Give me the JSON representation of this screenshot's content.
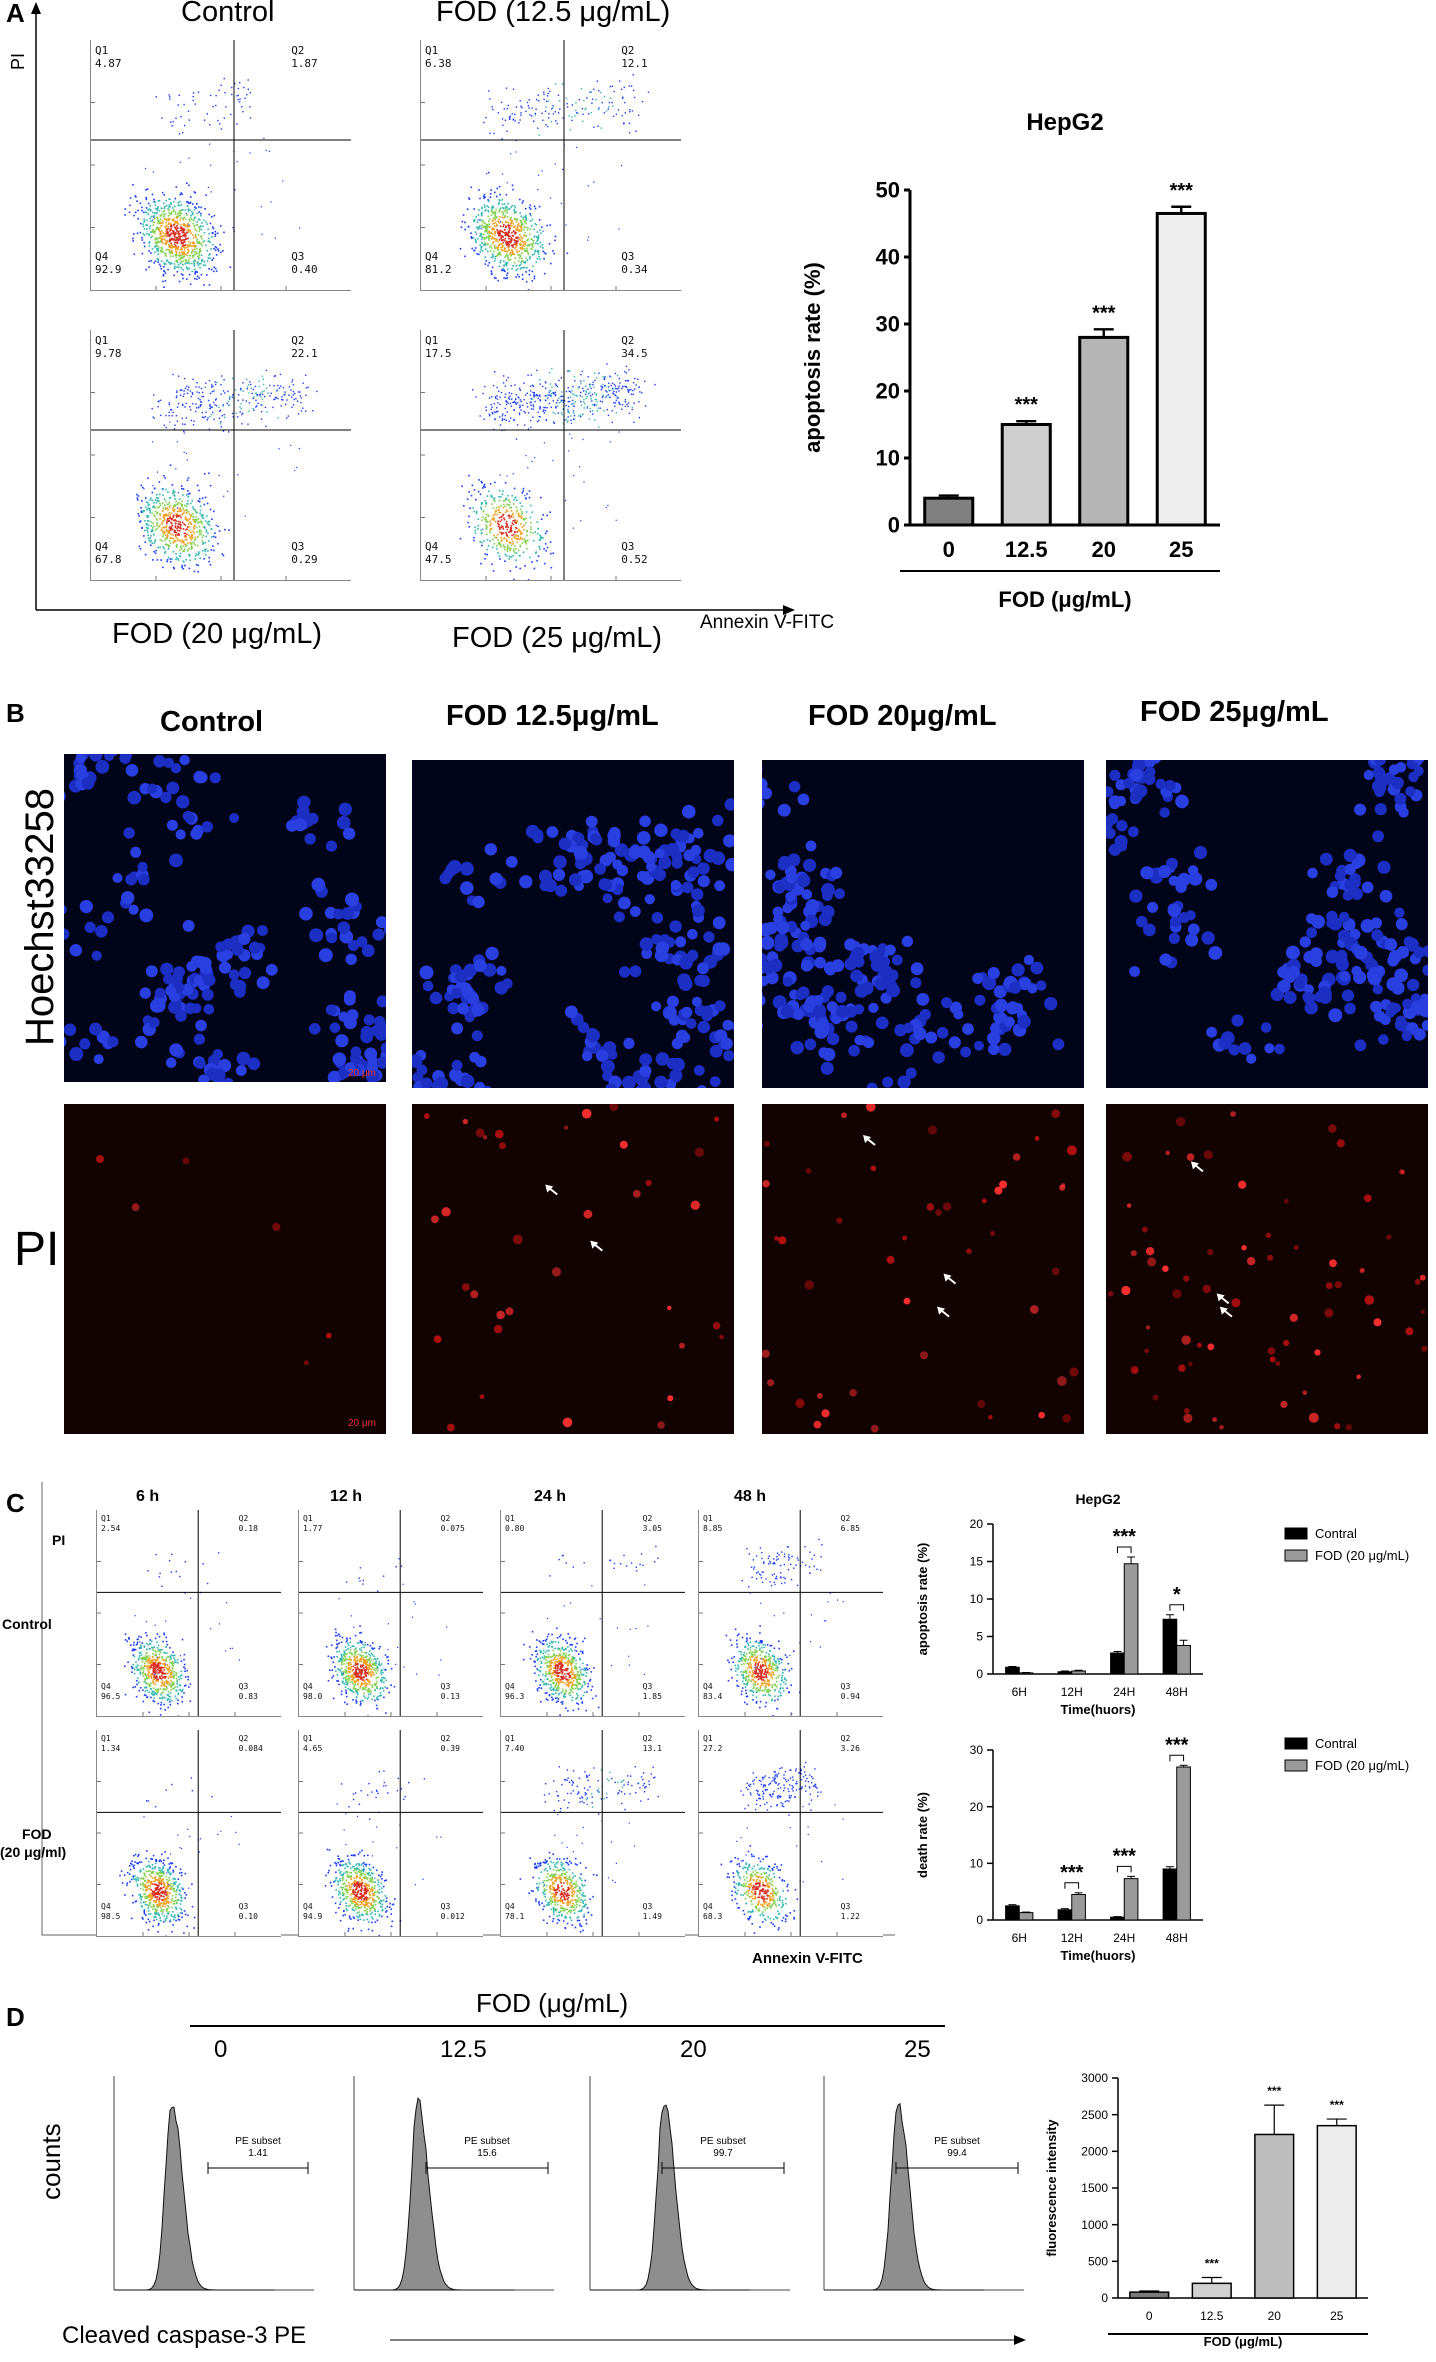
{
  "panels": {
    "A": {
      "letter": "A",
      "y_label": "PI",
      "x_label": "Annexin V-FITC",
      "flow_plots": [
        {
          "title": "Control",
          "q1": "4.87",
          "q2": "1.87",
          "q3": "0.40",
          "q4": "92.9"
        },
        {
          "title": "FOD (12.5 μg/mL)",
          "q1": "6.38",
          "q2": "12.1",
          "q3": "0.34",
          "q4": "81.2"
        },
        {
          "title": "FOD (20 μg/mL)",
          "q1": "9.78",
          "q2": "22.1",
          "q3": "0.29",
          "q4": "67.8"
        },
        {
          "title": "FOD (25 μg/mL)",
          "q1": "17.5",
          "q2": "34.5",
          "q3": "0.52",
          "q4": "47.5"
        }
      ],
      "quadrant_names": {
        "q1": "Q1",
        "q2": "Q2",
        "q3": "Q3",
        "q4": "Q4"
      }
    },
    "B": {
      "letter": "B",
      "columns": [
        "Control",
        "FOD 12.5μg/mL",
        "FOD 20μg/mL",
        "FOD 25μg/mL"
      ],
      "rows": [
        "Hoechst33258",
        "PI"
      ],
      "scale_bar": "20 μm"
    },
    "C": {
      "letter": "C",
      "time_headers": [
        "6 h",
        "12 h",
        "24 h",
        "48 h"
      ],
      "row_labels": {
        "pi": "PI",
        "control": "Control",
        "fod_line1": "FOD",
        "fod_line2": "(20 μg/ml)"
      },
      "x_label": "Annexin V-FITC",
      "control_row": [
        {
          "q1": "2.54",
          "q2": "0.18",
          "q3": "0.83",
          "q4": "96.5"
        },
        {
          "q1": "1.77",
          "q2": "0.075",
          "q3": "0.13",
          "q4": "98.0"
        },
        {
          "q1": "0.80",
          "q2": "3.05",
          "q3": "1.85",
          "q4": "96.3"
        },
        {
          "q1": "8.85",
          "q2": "6.85",
          "q3": "0.94",
          "q4": "83.4"
        }
      ],
      "fod_row": [
        {
          "q1": "1.34",
          "q2": "0.084",
          "q3": "0.10",
          "q4": "98.5"
        },
        {
          "q1": "4.65",
          "q2": "0.39",
          "q3": "0.012",
          "q4": "94.9"
        },
        {
          "q1": "7.40",
          "q2": "13.1",
          "q3": "1.49",
          "q4": "78.1"
        },
        {
          "q1": "27.2",
          "q2": "3.26",
          "q3": "1.22",
          "q4": "68.3"
        }
      ]
    },
    "D": {
      "letter": "D",
      "header": "FOD (μg/mL)",
      "concentrations": [
        "0",
        "12.5",
        "20",
        "25"
      ],
      "subset_label": "PE subset",
      "subset_values": [
        "1.41",
        "15.6",
        "99.7",
        "99.4"
      ],
      "y_label": "counts",
      "x_label": "Cleaved caspase-3 PE"
    }
  },
  "chart_data": [
    {
      "id": "A_bar",
      "type": "bar",
      "title": "HepG2",
      "categories": [
        "0",
        "12.5",
        "20",
        "25"
      ],
      "values": [
        4,
        15,
        28,
        46.5
      ],
      "errors": [
        0.4,
        0.5,
        1.2,
        1.0
      ],
      "significance": [
        "",
        "***",
        "***",
        "***"
      ],
      "xlabel": "FOD (μg/mL)",
      "ylabel": "apoptosis rate  (%)",
      "ylim": [
        0,
        50
      ],
      "yticks": [
        "0",
        "10",
        "20",
        "30",
        "40",
        "50"
      ],
      "colors": [
        "#808080",
        "#cfcfcf",
        "#b5b5b5",
        "#eeeeee"
      ]
    },
    {
      "id": "C_apoptosis",
      "type": "bar",
      "title": "HepG2",
      "categories": [
        "6H",
        "12H",
        "24H",
        "48H"
      ],
      "series": [
        {
          "name": "Contral",
          "values": [
            0.9,
            0.3,
            2.8,
            7.3
          ],
          "errors": [
            0.1,
            0.1,
            0.2,
            0.6
          ],
          "color": "#000000"
        },
        {
          "name": "FOD (20 μg/mL)",
          "values": [
            0.15,
            0.4,
            14.7,
            3.8
          ],
          "errors": [
            0.05,
            0.1,
            0.9,
            0.7
          ],
          "color": "#9a9a9a"
        }
      ],
      "significance": [
        "",
        "",
        "***",
        "*"
      ],
      "xlabel": "Time(huors)",
      "ylabel": "apoptosis rate  (%)",
      "ylim": [
        0,
        20
      ],
      "yticks": [
        "0",
        "5",
        "10",
        "15",
        "20"
      ],
      "legend": "top-right"
    },
    {
      "id": "C_death",
      "type": "bar",
      "categories": [
        "6H",
        "12H",
        "24H",
        "48H"
      ],
      "series": [
        {
          "name": "Contral",
          "values": [
            2.5,
            1.8,
            0.5,
            9.0
          ],
          "errors": [
            0.2,
            0.2,
            0.1,
            0.4
          ],
          "color": "#000000"
        },
        {
          "name": "FOD (20 μg/mL)",
          "values": [
            1.3,
            4.5,
            7.3,
            27.0
          ],
          "errors": [
            0.1,
            0.3,
            0.4,
            0.3
          ],
          "color": "#9a9a9a"
        }
      ],
      "significance": [
        "",
        "***",
        "***",
        "***"
      ],
      "xlabel": "Time(huors)",
      "ylabel": "death rate  (%)",
      "ylim": [
        0,
        30
      ],
      "yticks": [
        "0",
        "10",
        "20",
        "30"
      ],
      "legend": "top-right"
    },
    {
      "id": "D_bar",
      "type": "bar",
      "categories": [
        "0",
        "12.5",
        "20",
        "25"
      ],
      "values": [
        80,
        200,
        2230,
        2350
      ],
      "errors": [
        15,
        80,
        400,
        90
      ],
      "significance": [
        "",
        "***",
        "***",
        "***"
      ],
      "xlabel": "FOD (μg/mL)",
      "ylabel": "fluorescence intensity",
      "ylim": [
        0,
        3000
      ],
      "yticks": [
        "0",
        "500",
        "1000",
        "1500",
        "2000",
        "2500",
        "3000"
      ],
      "colors": [
        "#7a7a7a",
        "#d0d0d0",
        "#bdbdbd",
        "#ececec"
      ]
    }
  ]
}
